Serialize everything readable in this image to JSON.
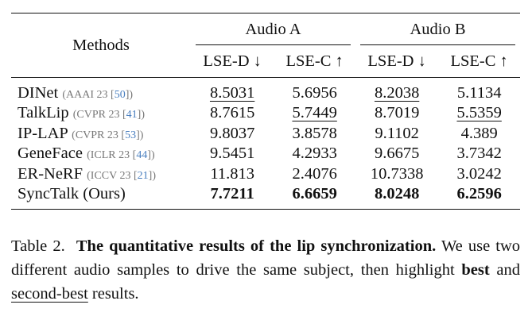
{
  "table": {
    "methods_header": "Methods",
    "groups": [
      {
        "label": "Audio A",
        "metrics": [
          "LSE-D ↓",
          "LSE-C ↑"
        ]
      },
      {
        "label": "Audio B",
        "metrics": [
          "LSE-D ↓",
          "LSE-C ↑"
        ]
      }
    ],
    "rows": [
      {
        "method": "DINet",
        "venue": "AAAI 23",
        "cite": "50",
        "values": [
          "8.5031",
          "5.6956",
          "8.2038",
          "5.1134"
        ],
        "styles": [
          "second",
          "",
          "second",
          ""
        ]
      },
      {
        "method": "TalkLip",
        "venue": "CVPR 23",
        "cite": "41",
        "values": [
          "8.7615",
          "5.7449",
          "8.7019",
          "5.5359"
        ],
        "styles": [
          "",
          "second",
          "",
          "second"
        ]
      },
      {
        "method": "IP-LAP",
        "venue": "CVPR 23",
        "cite": "53",
        "values": [
          "9.8037",
          "3.8578",
          "9.1102",
          "4.389"
        ],
        "styles": [
          "",
          "",
          "",
          ""
        ]
      },
      {
        "method": "GeneFace",
        "venue": "ICLR 23",
        "cite": "44",
        "values": [
          "9.5451",
          "4.2933",
          "9.6675",
          "3.7342"
        ],
        "styles": [
          "",
          "",
          "",
          ""
        ]
      },
      {
        "method": "ER-NeRF",
        "venue": "ICCV 23",
        "cite": "21",
        "values": [
          "11.813",
          "2.4076",
          "10.7338",
          "3.0242"
        ],
        "styles": [
          "",
          "",
          "",
          ""
        ]
      },
      {
        "method": "SyncTalk (Ours)",
        "venue": "",
        "cite": "",
        "values": [
          "7.7211",
          "6.6659",
          "8.0248",
          "6.2596"
        ],
        "styles": [
          "best",
          "best",
          "best",
          "best"
        ]
      }
    ]
  },
  "caption": {
    "label": "Table 2.",
    "title": "The quantitative results of the lip synchronization.",
    "text_1": "We use two different audio samples to drive the same subject, then highlight",
    "best_word": "best",
    "text_2": "and",
    "second_word": "second-best",
    "text_3": "results."
  }
}
